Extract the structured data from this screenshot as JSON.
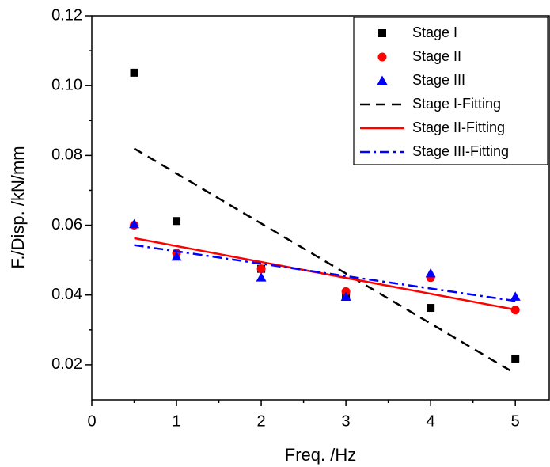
{
  "chart_data": {
    "type": "scatter",
    "x_label": "Freq. /Hz",
    "y_label": "F./Disp. /kN/mm",
    "xlim": [
      0,
      5.4
    ],
    "ylim": [
      0.01,
      0.12
    ],
    "xticks": [
      0,
      1,
      2,
      3,
      4,
      5
    ],
    "yticks": [
      0.02,
      0.04,
      0.06,
      0.08,
      {
        "value": 0.1,
        "label": "0.10"
      },
      0.12
    ],
    "xminorticks": [
      0.5,
      1.5,
      2.5,
      3.5,
      4.5
    ],
    "yminorticks": [
      0.03,
      0.05,
      0.07,
      0.09,
      0.11
    ],
    "legend": "upper right",
    "series": [
      {
        "name": "Stage I",
        "color": "#000000",
        "style": "square",
        "x": [
          0.5,
          1,
          2,
          3,
          4,
          5
        ],
        "values": [
          0.1037,
          0.0612,
          0.0475,
          0.0395,
          0.0363,
          0.0218
        ]
      },
      {
        "name": "Stage II",
        "color": "#ff0000",
        "style": "circle",
        "x": [
          0.5,
          1,
          2,
          3,
          4,
          5
        ],
        "values": [
          0.06,
          0.052,
          0.0475,
          0.041,
          0.045,
          0.0357
        ]
      },
      {
        "name": "Stage III",
        "color": "#0000ff",
        "style": "triangle",
        "x": [
          0.5,
          1,
          2,
          3,
          4,
          5
        ],
        "values": [
          0.0603,
          0.051,
          0.045,
          0.0395,
          0.0462,
          0.0395
        ]
      },
      {
        "name": "Stage I-Fitting",
        "color": "#000000",
        "style": "dashed",
        "x": [
          0.5,
          5
        ],
        "values": [
          0.082,
          0.0175
        ]
      },
      {
        "name": "Stage II-Fitting",
        "color": "#ff0000",
        "style": "solid",
        "x": [
          0.5,
          5
        ],
        "values": [
          0.0563,
          0.0358
        ]
      },
      {
        "name": "Stage III-Fitting",
        "color": "#0000ff",
        "style": "dashdot",
        "x": [
          0.5,
          5
        ],
        "values": [
          0.0543,
          0.0383
        ]
      }
    ]
  }
}
